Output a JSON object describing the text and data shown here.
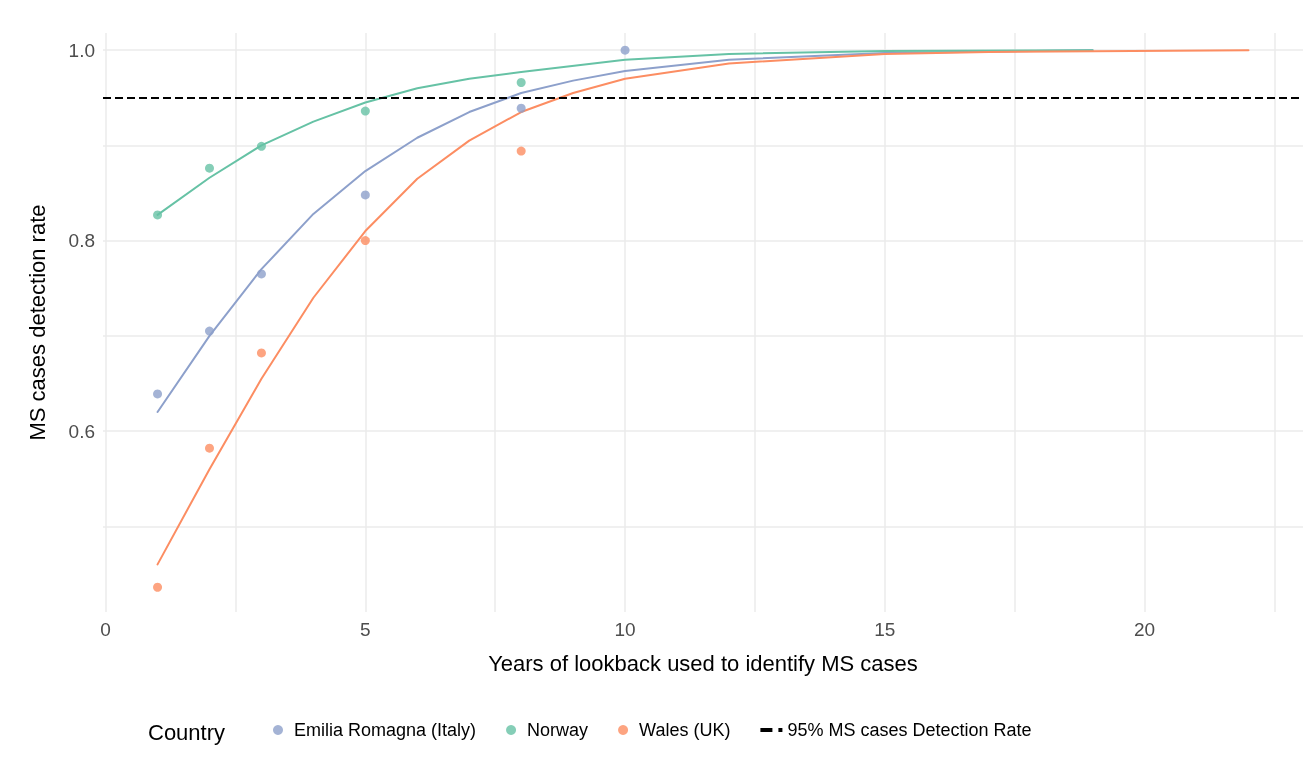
{
  "chart_data": {
    "type": "scatter",
    "xlabel": "Years of lookback used to identify MS cases",
    "ylabel": "MS cases detection rate",
    "legend_title": "Country",
    "legend": "bottom",
    "grid": true,
    "xlim": [
      -0.05,
      23.05
    ],
    "xticks": [
      0,
      {
        "value": 2.5,
        "label": null
      },
      5,
      {
        "value": 7.5,
        "label": null
      },
      10,
      {
        "value": 12.5,
        "label": null
      },
      15,
      {
        "value": 17.5,
        "label": null
      },
      20,
      {
        "value": 22.5,
        "label": null
      }
    ],
    "ylim": [
      0.41,
      1.018
    ],
    "yticks": [
      {
        "value": 0.5,
        "label": null
      },
      {
        "value": 0.6,
        "label": "0.6"
      },
      {
        "value": 0.7,
        "label": null
      },
      {
        "value": 0.8,
        "label": "0.8"
      },
      {
        "value": 0.9,
        "label": null
      },
      {
        "value": 1,
        "label": "1.0"
      }
    ],
    "series": [
      {
        "name": "Emilia Romagna (Italy)",
        "marker": "circle",
        "color": "#8da0cb",
        "x": [
          1,
          2,
          3,
          5,
          8,
          10
        ],
        "values": [
          0.639,
          0.705,
          0.765,
          0.848,
          0.939,
          1.0
        ]
      },
      {
        "name": "Norway",
        "marker": "circle",
        "color": "#66c2a5",
        "x": [
          1,
          2,
          3,
          5,
          8
        ],
        "values": [
          0.827,
          0.876,
          0.899,
          0.936,
          0.966
        ]
      },
      {
        "name": "Wales (UK)",
        "marker": "circle",
        "color": "#fc8d62",
        "x": [
          1,
          2,
          3,
          5,
          8
        ],
        "values": [
          0.436,
          0.582,
          0.682,
          0.8,
          0.894
        ]
      },
      {
        "type": "line",
        "marker": "none",
        "color": "#8da0cb",
        "x": [
          1,
          2,
          3,
          4,
          5,
          6,
          7,
          8,
          9,
          10,
          12,
          15,
          19
        ],
        "values": [
          0.62,
          0.7,
          0.77,
          0.828,
          0.873,
          0.908,
          0.935,
          0.955,
          0.968,
          0.978,
          0.99,
          0.997,
          1.0
        ]
      },
      {
        "type": "line",
        "marker": "none",
        "color": "#66c2a5",
        "x": [
          1,
          2,
          3,
          4,
          5,
          6,
          7,
          8,
          10,
          12,
          15,
          19
        ],
        "values": [
          0.827,
          0.866,
          0.9,
          0.925,
          0.945,
          0.96,
          0.97,
          0.977,
          0.99,
          0.996,
          0.999,
          1.0
        ]
      },
      {
        "type": "line",
        "marker": "none",
        "color": "#fc8d62",
        "x": [
          1,
          2,
          3,
          4,
          5,
          6,
          7,
          8,
          9,
          10,
          12,
          15,
          17,
          22
        ],
        "values": [
          0.46,
          0.56,
          0.655,
          0.74,
          0.81,
          0.865,
          0.905,
          0.935,
          0.955,
          0.97,
          0.986,
          0.996,
          0.998,
          1.0
        ]
      }
    ],
    "ref_lines": [
      {
        "axis": "y",
        "value": 0.95,
        "label": "95% MS cases Detection Rate",
        "color": "#000000",
        "line_style": "dashed"
      }
    ]
  }
}
